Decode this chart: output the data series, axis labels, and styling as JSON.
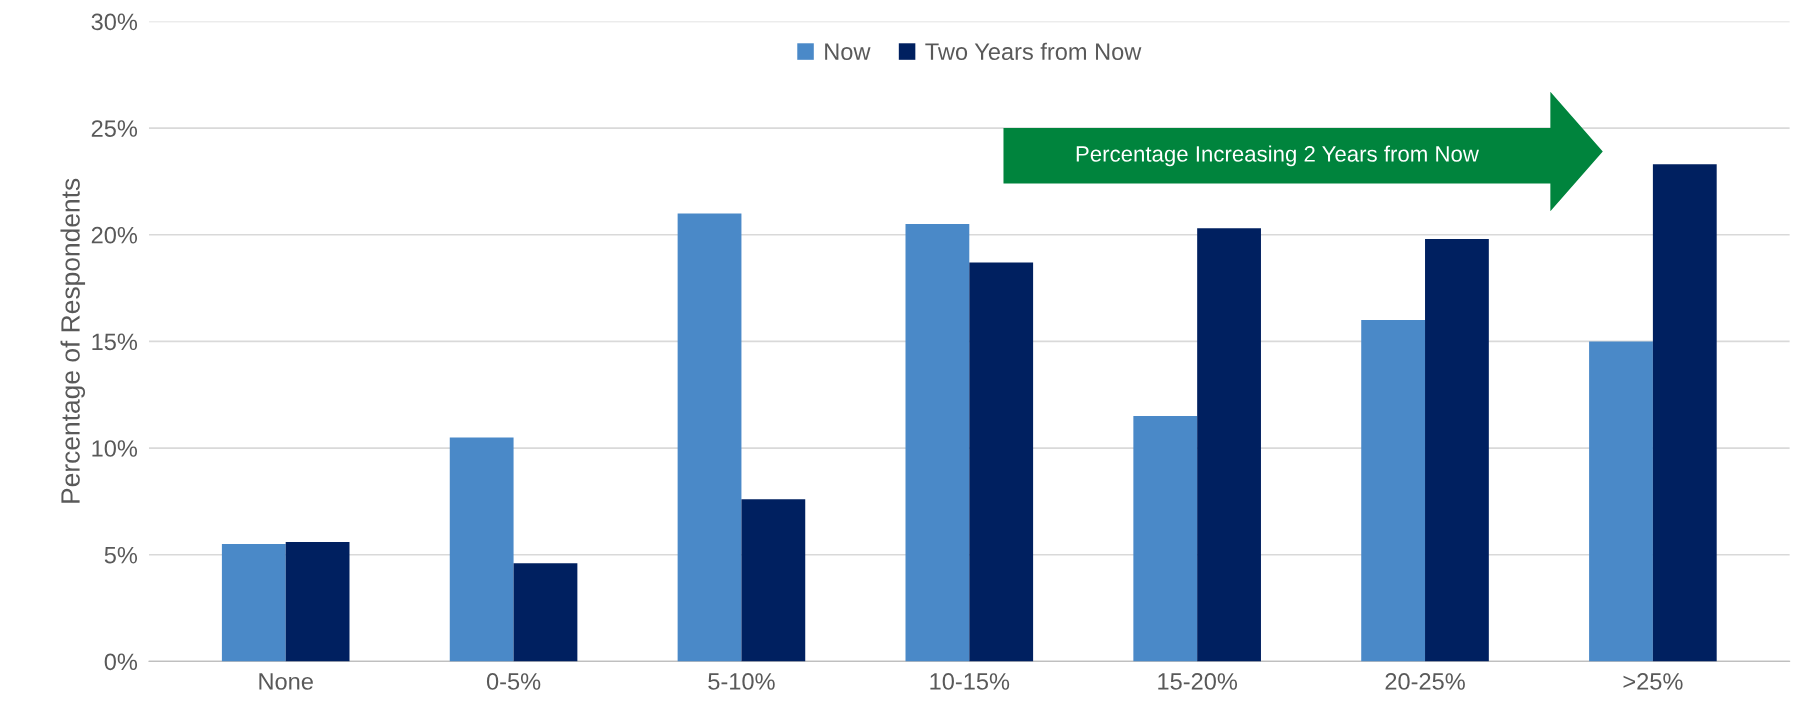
{
  "chart_data": {
    "type": "bar",
    "ylabel": "Percentage of Respondents",
    "categories": [
      "None",
      "0-5%",
      "5-10%",
      "10-15%",
      "15-20%",
      "20-25%",
      ">25%"
    ],
    "series": [
      {
        "name": "Now",
        "color": "#4a89c8",
        "values": [
          5.5,
          10.5,
          21.0,
          20.5,
          11.5,
          16.0,
          15.0
        ]
      },
      {
        "name": "Two Years from Now",
        "color": "#002060",
        "values": [
          5.6,
          4.6,
          7.6,
          18.7,
          20.3,
          19.8,
          23.3
        ]
      }
    ],
    "ylim": [
      0,
      30
    ],
    "yticks": [
      {
        "value": 0,
        "label": "0%"
      },
      {
        "value": 5,
        "label": "5%"
      },
      {
        "value": 10,
        "label": "10%"
      },
      {
        "value": 15,
        "label": "15%"
      },
      {
        "value": 20,
        "label": "20%"
      },
      {
        "value": 25,
        "label": "25%"
      },
      {
        "value": 30,
        "label": "30%"
      }
    ],
    "grid": "y",
    "legend": "top",
    "annotations": [
      "Percentage Increasing 2 Years from Now"
    ]
  }
}
